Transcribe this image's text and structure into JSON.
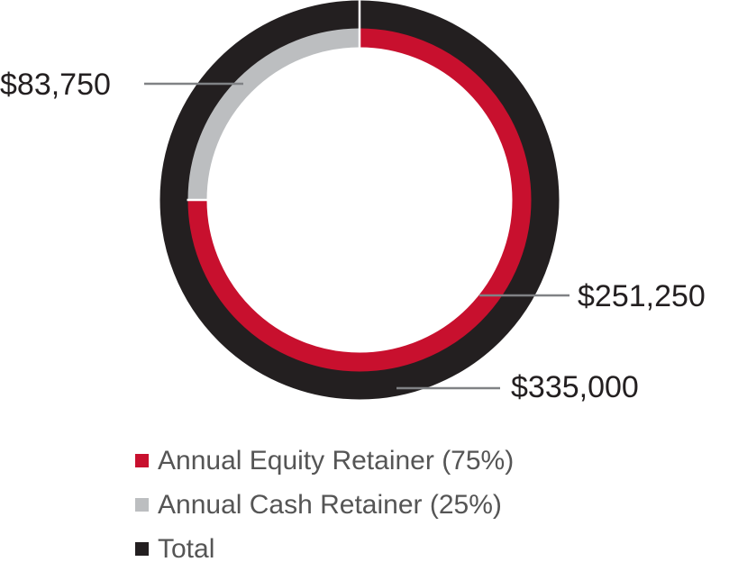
{
  "chart_data": {
    "type": "pie",
    "variant": "nested-donut",
    "rings": [
      {
        "ring": "outer",
        "slices": [
          {
            "label": "Total",
            "value": 335000,
            "color": "#231f20"
          }
        ]
      },
      {
        "ring": "inner",
        "slices": [
          {
            "label": "Annual Equity Retainer (75%)",
            "value": 251250,
            "color": "#c8102e"
          },
          {
            "label": "Annual Cash Retainer (25%)",
            "value": 83750,
            "color": "#bcbec0"
          }
        ]
      }
    ],
    "data_labels": [
      "$83,750",
      "$251,250",
      "$335,000"
    ],
    "legend": {
      "placement": "bottom",
      "items": [
        {
          "label": "Annual Equity Retainer (75%)",
          "color": "#c8102e"
        },
        {
          "label": "Annual Cash Retainer (25%)",
          "color": "#bcbec0"
        },
        {
          "label": "Total",
          "color": "#231f20"
        }
      ]
    }
  }
}
